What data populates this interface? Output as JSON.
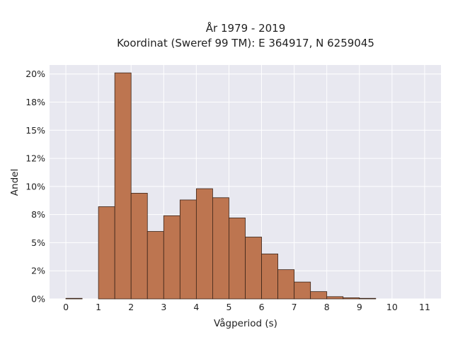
{
  "chart_data": {
    "type": "bar",
    "title_line1": "År 1979 - 2019",
    "title_line2": "Koordinat (Sweref 99 TM): E 364917, N 6259045",
    "xlabel": "Vågperiod (s)",
    "ylabel": "Andel",
    "xlim": [
      -0.5,
      11.5
    ],
    "ylim": [
      0,
      20.8
    ],
    "grid": true,
    "x_ticks": [
      0,
      1,
      2,
      3,
      4,
      5,
      6,
      7,
      8,
      9,
      10,
      11
    ],
    "x_tick_labels": [
      "0",
      "1",
      "2",
      "3",
      "4",
      "5",
      "6",
      "7",
      "8",
      "9",
      "10",
      "11"
    ],
    "y_ticks": [
      0,
      2.5,
      5,
      7.5,
      10,
      12.5,
      15,
      17.5,
      20
    ],
    "y_tick_labels": [
      "0%",
      "2%",
      "5%",
      "8%",
      "10%",
      "12%",
      "15%",
      "18%",
      "20%"
    ],
    "bin_width": 0.5,
    "bin_starts": [
      0,
      0.5,
      1,
      1.5,
      2,
      2.5,
      3,
      3.5,
      4,
      4.5,
      5,
      5.5,
      6,
      6.5,
      7,
      7.5,
      8,
      8.5,
      9,
      9.5,
      10,
      10.5,
      11
    ],
    "values": [
      0.05,
      0,
      8.2,
      20.1,
      9.4,
      6.0,
      7.4,
      8.8,
      9.8,
      9.0,
      7.2,
      5.5,
      4.0,
      2.6,
      1.5,
      0.65,
      0.2,
      0.1,
      0.05,
      0,
      0,
      0,
      0
    ],
    "colors": {
      "bar_fill": "#bd7550",
      "bar_edge": "#3a2418",
      "plot_bg": "#e8e8f0",
      "grid": "#ffffff"
    }
  }
}
